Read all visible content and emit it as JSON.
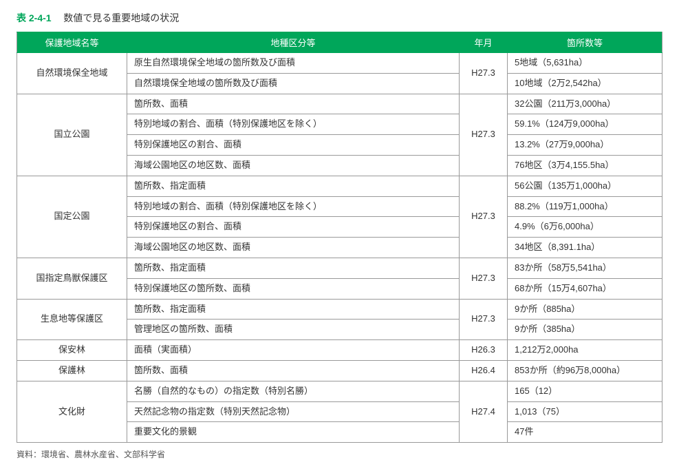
{
  "title_number": "表 2-4-1",
  "title_text": "数値で見る重要地域の状況",
  "headers": {
    "c1": "保護地域名等",
    "c2": "地種区分等",
    "c3": "年月",
    "c4": "箇所数等"
  },
  "groups": [
    {
      "name": "自然環境保全地域",
      "ym": "H27.3",
      "rows": [
        {
          "type": "原生自然環境保全地域の箇所数及び面積",
          "value": "5地域（5,631ha）"
        },
        {
          "type": "自然環境保全地域の箇所数及び面積",
          "value": "10地域（2万2,542ha）"
        }
      ]
    },
    {
      "name": "国立公園",
      "ym": "H27.3",
      "rows": [
        {
          "type": "箇所数、面積",
          "value": "32公園（211万3,000ha）"
        },
        {
          "type": "特別地域の割合、面積（特別保護地区を除く）",
          "value": "59.1%（124万9,000ha）"
        },
        {
          "type": "特別保護地区の割合、面積",
          "value": "13.2%（27万9,000ha）"
        },
        {
          "type": "海域公園地区の地区数、面積",
          "value": "76地区（3万4,155.5ha）"
        }
      ]
    },
    {
      "name": "国定公園",
      "ym": "H27.3",
      "rows": [
        {
          "type": "箇所数、指定面積",
          "value": "56公園（135万1,000ha）"
        },
        {
          "type": "特別地域の割合、面積（特別保護地区を除く）",
          "value": "88.2%（119万1,000ha）"
        },
        {
          "type": "特別保護地区の割合、面積",
          "value": "4.9%（6万6,000ha）"
        },
        {
          "type": "海域公園地区の地区数、面積",
          "value": "34地区（8,391.1ha）"
        }
      ]
    },
    {
      "name": "国指定鳥獣保護区",
      "ym": "H27.3",
      "rows": [
        {
          "type": "箇所数、指定面積",
          "value": "83か所（58万5,541ha）"
        },
        {
          "type": "特別保護地区の箇所数、面積",
          "value": "68か所（15万4,607ha）"
        }
      ]
    },
    {
      "name": "生息地等保護区",
      "ym": "H27.3",
      "rows": [
        {
          "type": "箇所数、指定面積",
          "value": "9か所（885ha）"
        },
        {
          "type": "管理地区の箇所数、面積",
          "value": "9か所（385ha）"
        }
      ]
    },
    {
      "name": "保安林",
      "ym": "H26.3",
      "rows": [
        {
          "type": "面積（実面積）",
          "value": "1,212万2,000ha"
        }
      ]
    },
    {
      "name": "保護林",
      "ym": "H26.4",
      "rows": [
        {
          "type": "箇所数、面積",
          "value": "853か所（約96万8,000ha）"
        }
      ]
    },
    {
      "name": "文化財",
      "ym": "H27.4",
      "rows": [
        {
          "type": "名勝（自然的なもの）の指定数（特別名勝）",
          "value": "165（12）"
        },
        {
          "type": "天然記念物の指定数（特別天然記念物）",
          "value": "1,013（75）"
        },
        {
          "type": "重要文化的景観",
          "value": "47件"
        }
      ]
    }
  ],
  "source": "資料：環境省、農林水産省、文部科学省"
}
